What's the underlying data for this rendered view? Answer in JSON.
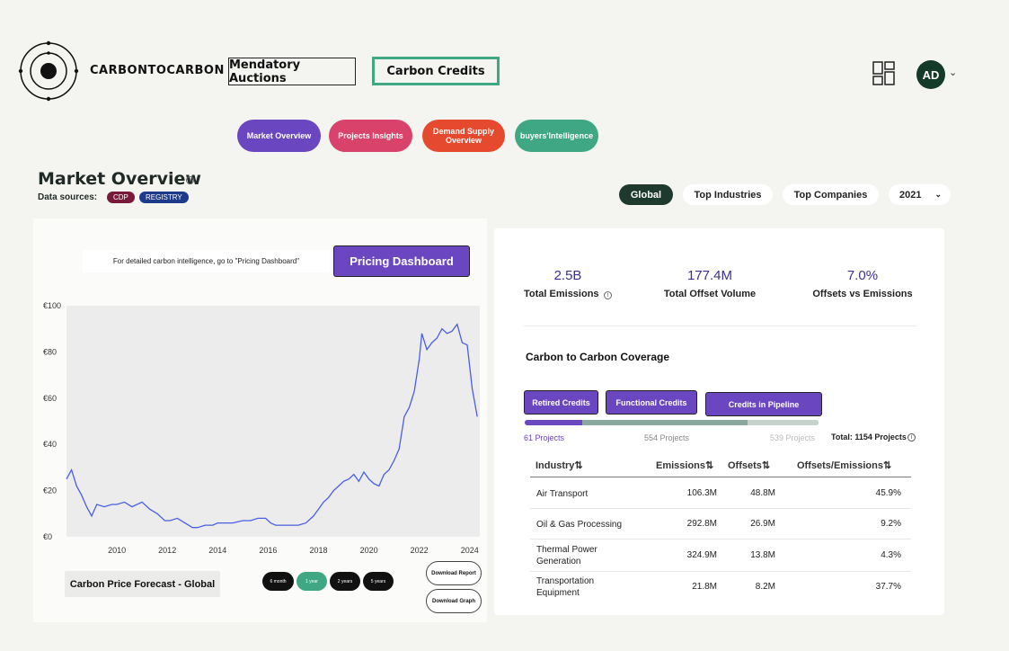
{
  "brand": {
    "name": "CARBONTOCARBON"
  },
  "nav": {
    "mandatory": "Mendatory Auctions",
    "carbon": "Carbon Credits"
  },
  "user": {
    "initials": "AD"
  },
  "pills": [
    {
      "label": "Market Overview",
      "color": "#6b46c1"
    },
    {
      "label": "Projects Insights",
      "color": "#d9426a"
    },
    {
      "label": "Demand Supply Overview",
      "color": "#e64a2e"
    },
    {
      "label": "buyers'Intelligence",
      "color": "#3fa783"
    }
  ],
  "overview": {
    "title": "Market Overview",
    "sources_label": "Data sources:",
    "sources": [
      "CDP",
      "REGISTRY"
    ]
  },
  "filters": {
    "global": "Global",
    "industries": "Top Industries",
    "companies": "Top Companies",
    "year": "2021"
  },
  "left": {
    "note": "For detailed carbon intelligence, go to  \"Pricing Dashboard\"",
    "pricing_button": "Pricing Dashboard",
    "forecast_label": "Carbon Price Forecast  - Global",
    "ranges": [
      "6 month",
      "1 year",
      "2 years",
      "5 years"
    ],
    "download_report": "Download Report",
    "download_graph": "Download Graph"
  },
  "chart_data": {
    "type": "line",
    "y_ticks": [
      "€0",
      "€20",
      "€40",
      "€60",
      "€80",
      "€100"
    ],
    "x_ticks": [
      "2010",
      "2012",
      "2014",
      "2016",
      "2018",
      "2020",
      "2022",
      "2024"
    ],
    "ylim": [
      0,
      100
    ],
    "xlim": [
      2008.0,
      2024.4
    ],
    "series": [
      {
        "color": "#4a5fe0",
        "x": [
          2008.0,
          2008.2,
          2008.4,
          2008.6,
          2008.8,
          2009.0,
          2009.2,
          2009.5,
          2009.8,
          2010.0,
          2010.3,
          2010.6,
          2011.0,
          2011.3,
          2011.6,
          2011.9,
          2012.1,
          2012.4,
          2012.7,
          2013.0,
          2013.2,
          2013.5,
          2013.8,
          2014.0,
          2014.3,
          2014.6,
          2015.0,
          2015.3,
          2015.6,
          2015.9,
          2016.1,
          2016.3,
          2016.6,
          2016.9,
          2017.2,
          2017.5,
          2017.8,
          2018.0,
          2018.2,
          2018.4,
          2018.6,
          2018.8,
          2019.0,
          2019.2,
          2019.4,
          2019.6,
          2019.8,
          2020.0,
          2020.2,
          2020.4,
          2020.6,
          2020.8,
          2021.0,
          2021.2,
          2021.4,
          2021.6,
          2021.8,
          2022.0,
          2022.1,
          2022.3,
          2022.5,
          2022.7,
          2022.9,
          2023.1,
          2023.3,
          2023.5,
          2023.7,
          2023.9,
          2024.1,
          2024.3
        ],
        "values": [
          25,
          29,
          22,
          18,
          13,
          9,
          14,
          13,
          14,
          14,
          15,
          13,
          15,
          12,
          10,
          7,
          7,
          8,
          6,
          4,
          4,
          5,
          5,
          6,
          6,
          6,
          7,
          7,
          8,
          8,
          6,
          5,
          5,
          5,
          5,
          6,
          9,
          12,
          15,
          17,
          20,
          22,
          24,
          25,
          27,
          24,
          28,
          25,
          23,
          22,
          27,
          29,
          33,
          38,
          52,
          56,
          63,
          77,
          88,
          81,
          84,
          86,
          90,
          88,
          89,
          92,
          84,
          83,
          64,
          52
        ]
      }
    ]
  },
  "kpis": [
    {
      "value": "2.5B",
      "label": "Total Emissions"
    },
    {
      "value": "177.4M",
      "label": "Total Offset Volume"
    },
    {
      "value": "7.0%",
      "label": "Offsets vs Emissions"
    }
  ],
  "coverage": {
    "title": "Carbon to Carbon Coverage",
    "tabs": [
      "Retired Credits",
      "Functional Credits",
      "Credits in Pipeline"
    ],
    "progress": {
      "retired": 61,
      "functional": 554,
      "pipeline": 539,
      "total": 1154
    },
    "labels": [
      "61 Projects",
      "554 Projects",
      "539 Projects"
    ],
    "total_label": "Total: 1154 Projects"
  },
  "table": {
    "headers": [
      "Industry⇅",
      "Emissions⇅",
      "Offsets⇅",
      "Offsets/Emissions⇅"
    ],
    "rows": [
      {
        "industry": "Air Transport",
        "emissions": "106.3M",
        "offsets": "48.8M",
        "ratio": "45.9%"
      },
      {
        "industry": "Oil & Gas Processing",
        "emissions": "292.8M",
        "offsets": "26.9M",
        "ratio": "9.2%"
      },
      {
        "industry": "Thermal Power Generation",
        "emissions": "324.9M",
        "offsets": "13.8M",
        "ratio": "4.3%"
      },
      {
        "industry": "Transportation Equipment",
        "emissions": "21.8M",
        "offsets": "8.2M",
        "ratio": "37.7%"
      }
    ]
  }
}
